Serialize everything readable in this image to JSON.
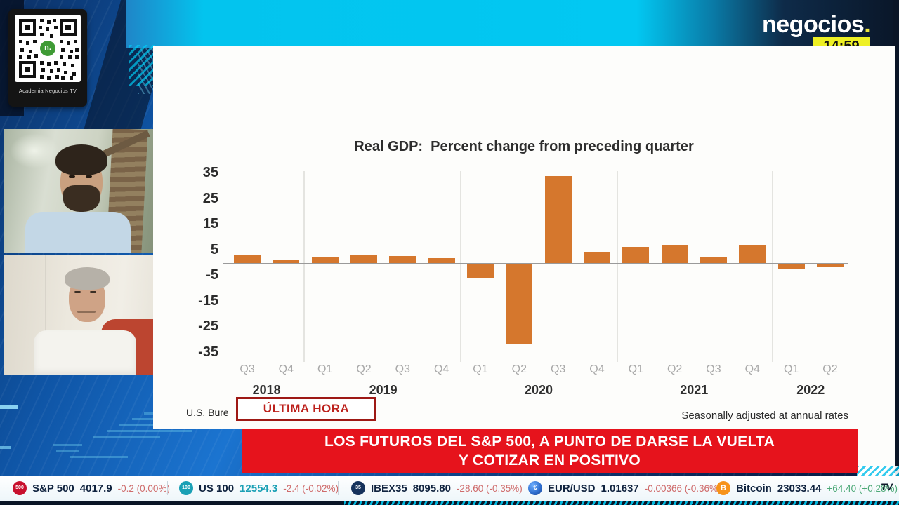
{
  "qr_card": {
    "label": "Academia Negocios TV",
    "logo_text": "n."
  },
  "header": {
    "brand": "negocios",
    "brand_dot": ".",
    "brand_dot_color": "#f0e83a",
    "time": "14:59"
  },
  "chart": {
    "title": "Real GDP:  Percent change from preceding quarter",
    "source_note": "U.S. Bure",
    "footnote": "Seasonally adjusted at annual rates"
  },
  "chart_data": {
    "type": "bar",
    "title": "Real GDP: Percent change from preceding quarter",
    "quarters": [
      "Q3",
      "Q4",
      "Q1",
      "Q2",
      "Q3",
      "Q4",
      "Q1",
      "Q2",
      "Q3",
      "Q4",
      "Q1",
      "Q2",
      "Q3",
      "Q4",
      "Q1",
      "Q2"
    ],
    "year_groups": [
      {
        "label": "2018",
        "from": 0,
        "to": 1
      },
      {
        "label": "2019",
        "from": 2,
        "to": 5
      },
      {
        "label": "2020",
        "from": 6,
        "to": 9
      },
      {
        "label": "2021",
        "from": 10,
        "to": 13
      },
      {
        "label": "2022",
        "from": 14,
        "to": 15
      }
    ],
    "values": [
      2.9,
      1.1,
      2.4,
      3.2,
      2.8,
      1.9,
      -5.1,
      -31.2,
      33.8,
      4.5,
      6.3,
      6.7,
      2.3,
      6.9,
      -1.6,
      -0.9
    ],
    "yticks": [
      35,
      25,
      15,
      5,
      -5,
      -15,
      -25,
      -35
    ],
    "ylim": [
      -35,
      35
    ],
    "bar_color": "#d5772d",
    "grid": "vertical year separators",
    "note": "Seasonally adjusted at annual rates"
  },
  "breaking": {
    "badge": "ÚLTIMA HORA",
    "badge_color": "#bc201b",
    "banner_color": "#e6131c",
    "line1": "LOS FUTUROS DEL S&P 500, A PUNTO DE DARSE LA VUELTA",
    "line2": "Y COTIZAR EN POSITIVO"
  },
  "ticker": {
    "up_color": "#4da977",
    "down_color": "#cf6b6b",
    "logo": "TV",
    "items": [
      {
        "icon_text": "500",
        "icon_color": "#c8102e",
        "name": "S&P 500",
        "value": "4017.9",
        "change": "-0.2 (0.00%)",
        "direction": "down"
      },
      {
        "icon_text": "100",
        "icon_color": "#1aa0b5",
        "name": "US 100",
        "value": "12554.3",
        "value_color": "#1aa0b5",
        "change": "-2.4 (-0.02%)",
        "direction": "down"
      },
      {
        "icon_text": "35",
        "icon_color": "#15325c",
        "name": "IBEX35",
        "value": "8095.80",
        "change": "-28.60 (-0.35%)",
        "direction": "down"
      },
      {
        "icon_text": "€",
        "icon_color": "#2f6fd0",
        "name": "EUR/USD",
        "value": "1.01637",
        "change": "-0.00366 (-0.36%)",
        "direction": "down"
      },
      {
        "icon_text": "B",
        "icon_color": "#f7931a",
        "name": "Bitcoin",
        "value": "23033.44",
        "change": "+64.40 (+0.28%)",
        "direction": "up"
      }
    ]
  }
}
